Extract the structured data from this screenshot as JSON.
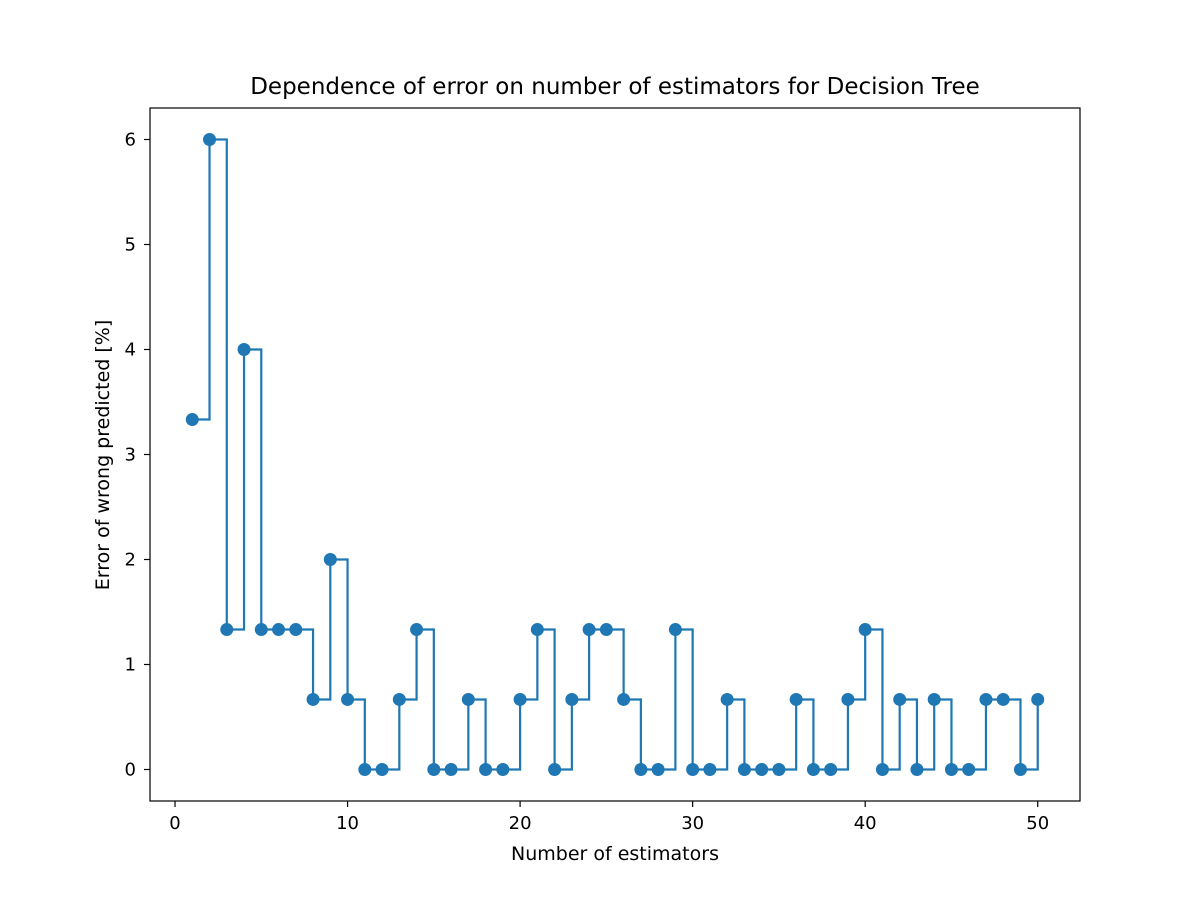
{
  "chart_data": {
    "type": "line",
    "style": "step-post with markers",
    "title": "Dependence of error on number of estimators for Decision Tree",
    "xlabel": "Number of estimators",
    "ylabel": "Error of wrong predicted [%]",
    "xlim": [
      -1.45,
      52.45
    ],
    "ylim": [
      -0.3,
      6.3
    ],
    "xticks": [
      0,
      10,
      20,
      30,
      40,
      50
    ],
    "yticks": [
      0,
      1,
      2,
      3,
      4,
      5,
      6
    ],
    "grid": false,
    "color": "#1f77b4",
    "x": [
      1,
      2,
      3,
      4,
      5,
      6,
      7,
      8,
      9,
      10,
      11,
      12,
      13,
      14,
      15,
      16,
      17,
      18,
      19,
      20,
      21,
      22,
      23,
      24,
      25,
      26,
      27,
      28,
      29,
      30,
      31,
      32,
      33,
      34,
      35,
      36,
      37,
      38,
      39,
      40,
      41,
      42,
      43,
      44,
      45,
      46,
      47,
      48,
      49,
      50
    ],
    "y": [
      3.333,
      6.0,
      1.333,
      4.0,
      1.333,
      1.333,
      1.333,
      0.667,
      2.0,
      0.667,
      0.0,
      0.0,
      0.667,
      1.333,
      0.0,
      0.0,
      0.667,
      0.0,
      0.0,
      0.667,
      1.333,
      0.0,
      0.667,
      1.333,
      1.333,
      0.667,
      0.0,
      0.0,
      1.333,
      0.0,
      0.0,
      0.667,
      0.0,
      0.0,
      0.0,
      0.667,
      0.0,
      0.0,
      0.667,
      1.333,
      0.0,
      0.667,
      0.0,
      0.667,
      0.0,
      0.0,
      0.667,
      0.667,
      0.0,
      0.667
    ]
  }
}
